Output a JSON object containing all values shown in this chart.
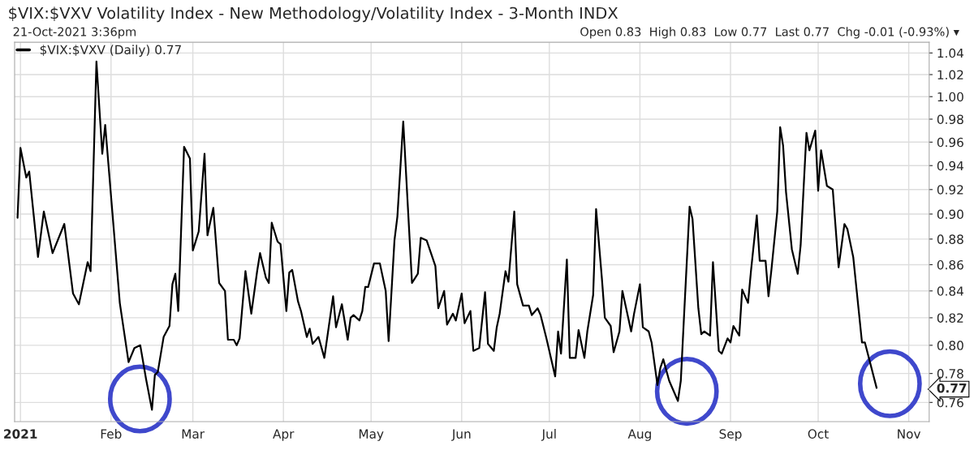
{
  "chart_data": {
    "type": "line",
    "title": "$VIX:$VXV Volatility Index - New Methodology/Volatility Index - 3-Month INDX",
    "subtitle": "21-Oct-2021 3:36pm",
    "annotations": [
      "Open 0.83  High 0.83  Low 0.77  Last 0.77  Chg -0.01 (-0.93%) ▾"
    ],
    "x": [
      "2020-12-31",
      "2021-01-01",
      "2021-01-03",
      "2021-01-04",
      "2021-01-07",
      "2021-01-09",
      "2021-01-12",
      "2021-01-16",
      "2021-01-19",
      "2021-01-21",
      "2021-01-24",
      "2021-01-25",
      "2021-01-27",
      "2021-01-29",
      "2021-01-30",
      "2021-02-04",
      "2021-02-07",
      "2021-02-09",
      "2021-02-11",
      "2021-02-13",
      "2021-02-15",
      "2021-02-16",
      "2021-02-17",
      "2021-02-19",
      "2021-02-21",
      "2021-02-22",
      "2021-02-23",
      "2021-02-24",
      "2021-02-26",
      "2021-02-28",
      "2021-03-01",
      "2021-03-03",
      "2021-03-05",
      "2021-03-06",
      "2021-03-08",
      "2021-03-10",
      "2021-03-12",
      "2021-03-13",
      "2021-03-15",
      "2021-03-16",
      "2021-03-17",
      "2021-03-19",
      "2021-03-21",
      "2021-03-23",
      "2021-03-24",
      "2021-03-26",
      "2021-03-27",
      "2021-03-28",
      "2021-03-30",
      "2021-03-31",
      "2021-04-02",
      "2021-04-03",
      "2021-04-04",
      "2021-04-06",
      "2021-04-07",
      "2021-04-09",
      "2021-04-10",
      "2021-04-11",
      "2021-04-13",
      "2021-04-15",
      "2021-04-18",
      "2021-04-19",
      "2021-04-21",
      "2021-04-23",
      "2021-04-24",
      "2021-04-25",
      "2021-04-27",
      "2021-04-28",
      "2021-04-29",
      "2021-04-30",
      "2021-05-02",
      "2021-05-04",
      "2021-05-06",
      "2021-05-07",
      "2021-05-09",
      "2021-05-10",
      "2021-05-12",
      "2021-05-15",
      "2021-05-17",
      "2021-05-18",
      "2021-05-20",
      "2021-05-23",
      "2021-05-24",
      "2021-05-26",
      "2021-05-27",
      "2021-05-29",
      "2021-05-30",
      "2021-06-01",
      "2021-06-02",
      "2021-06-04",
      "2021-06-05",
      "2021-06-07",
      "2021-06-09",
      "2021-06-10",
      "2021-06-12",
      "2021-06-13",
      "2021-06-14",
      "2021-06-16",
      "2021-06-17",
      "2021-06-19",
      "2021-06-20",
      "2021-06-22",
      "2021-06-24",
      "2021-06-25",
      "2021-06-27",
      "2021-06-28",
      "2021-06-30",
      "2021-07-03",
      "2021-07-04",
      "2021-07-05",
      "2021-07-07",
      "2021-07-08",
      "2021-07-10",
      "2021-07-11",
      "2021-07-13",
      "2021-07-14",
      "2021-07-16",
      "2021-07-17",
      "2021-07-19",
      "2021-07-20",
      "2021-07-22",
      "2021-07-23",
      "2021-07-25",
      "2021-07-26",
      "2021-07-28",
      "2021-07-29",
      "2021-07-30",
      "2021-08-01",
      "2021-08-02",
      "2021-08-04",
      "2021-08-05",
      "2021-08-07",
      "2021-08-08",
      "2021-08-09",
      "2021-08-11",
      "2021-08-14",
      "2021-08-15",
      "2021-08-16",
      "2021-08-18",
      "2021-08-19",
      "2021-08-21",
      "2021-08-22",
      "2021-08-23",
      "2021-08-25",
      "2021-08-26",
      "2021-08-28",
      "2021-08-29",
      "2021-08-31",
      "2021-09-01",
      "2021-09-02",
      "2021-09-04",
      "2021-09-05",
      "2021-09-07",
      "2021-09-08",
      "2021-09-10",
      "2021-09-11",
      "2021-09-13",
      "2021-09-14",
      "2021-09-15",
      "2021-09-17",
      "2021-09-18",
      "2021-09-19",
      "2021-09-20",
      "2021-09-22",
      "2021-09-24",
      "2021-09-25",
      "2021-09-27",
      "2021-09-28",
      "2021-09-30",
      "2021-10-01",
      "2021-10-02",
      "2021-10-04",
      "2021-10-06",
      "2021-10-08",
      "2021-10-10",
      "2021-10-11",
      "2021-10-13",
      "2021-10-16",
      "2021-10-17",
      "2021-10-21"
    ],
    "series": [
      {
        "name": "$VIX:$VXV (Daily) 0.77",
        "color": "#000000",
        "values": [
          0.897,
          0.955,
          0.93,
          0.935,
          0.866,
          0.902,
          0.869,
          0.892,
          0.838,
          0.83,
          0.862,
          0.855,
          1.032,
          0.95,
          0.975,
          0.831,
          0.788,
          0.798,
          0.8,
          0.776,
          0.755,
          0.779,
          0.781,
          0.806,
          0.814,
          0.845,
          0.853,
          0.825,
          0.956,
          0.946,
          0.871,
          0.886,
          0.95,
          0.883,
          0.905,
          0.846,
          0.84,
          0.804,
          0.804,
          0.8,
          0.805,
          0.855,
          0.823,
          0.855,
          0.869,
          0.85,
          0.846,
          0.893,
          0.878,
          0.876,
          0.825,
          0.854,
          0.856,
          0.832,
          0.825,
          0.806,
          0.812,
          0.801,
          0.806,
          0.791,
          0.836,
          0.813,
          0.83,
          0.804,
          0.82,
          0.822,
          0.818,
          0.825,
          0.843,
          0.843,
          0.861,
          0.861,
          0.84,
          0.803,
          0.879,
          0.898,
          0.978,
          0.846,
          0.853,
          0.881,
          0.879,
          0.859,
          0.827,
          0.84,
          0.815,
          0.823,
          0.818,
          0.838,
          0.816,
          0.825,
          0.796,
          0.798,
          0.839,
          0.801,
          0.796,
          0.813,
          0.823,
          0.855,
          0.847,
          0.902,
          0.845,
          0.829,
          0.829,
          0.822,
          0.827,
          0.822,
          0.805,
          0.778,
          0.81,
          0.794,
          0.864,
          0.791,
          0.791,
          0.811,
          0.791,
          0.81,
          0.837,
          0.904,
          0.849,
          0.82,
          0.814,
          0.795,
          0.81,
          0.84,
          0.82,
          0.81,
          0.823,
          0.845,
          0.813,
          0.81,
          0.802,
          0.772,
          0.784,
          0.79,
          0.775,
          0.761,
          0.775,
          0.817,
          0.906,
          0.896,
          0.827,
          0.808,
          0.81,
          0.807,
          0.862,
          0.796,
          0.794,
          0.805,
          0.802,
          0.814,
          0.807,
          0.841,
          0.831,
          0.855,
          0.899,
          0.863,
          0.863,
          0.836,
          0.856,
          0.902,
          0.973,
          0.957,
          0.918,
          0.872,
          0.853,
          0.875,
          0.968,
          0.953,
          0.97,
          0.919,
          0.953,
          0.923,
          0.92,
          0.858,
          0.892,
          0.888,
          0.866,
          0.802,
          0.802,
          0.77
        ]
      }
    ],
    "log": "y",
    "xlim": [
      "2020-12-30",
      "2021-11-08"
    ],
    "xticks": [
      {
        "value": "2021-01-01",
        "label": "2021"
      },
      {
        "value": "2021-02-01",
        "label": "Feb"
      },
      {
        "value": "2021-03-01",
        "label": "Mar"
      },
      {
        "value": "2021-04-01",
        "label": "Apr"
      },
      {
        "value": "2021-05-01",
        "label": "May"
      },
      {
        "value": "2021-06-01",
        "label": "Jun"
      },
      {
        "value": "2021-07-01",
        "label": "Jul"
      },
      {
        "value": "2021-08-01",
        "label": "Aug"
      },
      {
        "value": "2021-09-01",
        "label": "Sep"
      },
      {
        "value": "2021-10-01",
        "label": "Oct"
      },
      {
        "value": "2021-11-01",
        "label": "Nov"
      }
    ],
    "ylim": [
      0.747,
      1.05
    ],
    "yticks": [
      0.76,
      0.77,
      0.78,
      {
        "value": 0.8,
        "label": "0.80"
      },
      0.82,
      0.84,
      0.86,
      0.88,
      {
        "value": 0.9,
        "label": "0.90"
      },
      0.92,
      0.94,
      0.96,
      0.98,
      {
        "value": 1,
        "label": "1.00"
      },
      1.02,
      1.04
    ],
    "grid": true,
    "legend": "top left",
    "marker": "none",
    "line_style": "solid"
  }
}
